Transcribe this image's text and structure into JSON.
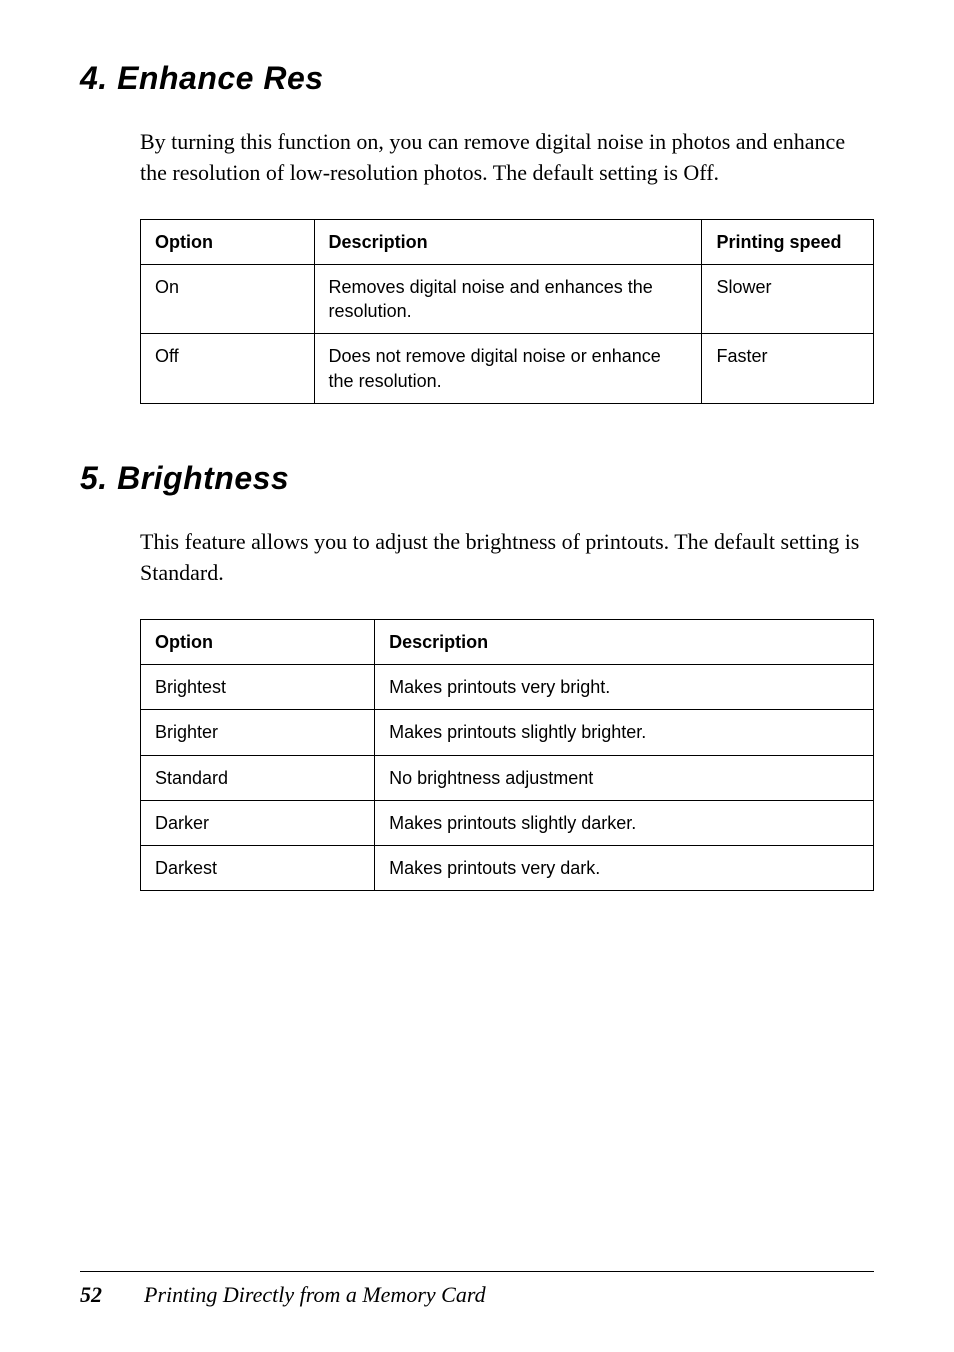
{
  "section1": {
    "heading": "4. Enhance Res",
    "body": "By turning this function on, you can remove digital noise in photos and enhance the resolution of low-resolution photos. The default setting is Off.",
    "table": {
      "headers": {
        "c1": "Option",
        "c2": "Description",
        "c3": "Printing speed"
      },
      "rows": [
        {
          "c1": "On",
          "c2": "Removes digital noise and enhances the resolution.",
          "c3": "Slower"
        },
        {
          "c1": "Off",
          "c2": "Does not remove digital noise or enhance the resolution.",
          "c3": "Faster"
        }
      ]
    }
  },
  "section2": {
    "heading": "5. Brightness",
    "body": "This feature allows you to adjust the brightness of printouts. The default setting is Standard.",
    "table": {
      "headers": {
        "c1": "Option",
        "c2": "Description"
      },
      "rows": [
        {
          "c1": "Brightest",
          "c2": "Makes printouts very bright."
        },
        {
          "c1": "Brighter",
          "c2": "Makes printouts slightly brighter."
        },
        {
          "c1": "Standard",
          "c2": "No brightness adjustment"
        },
        {
          "c1": "Darker",
          "c2": "Makes printouts slightly darker."
        },
        {
          "c1": "Darkest",
          "c2": "Makes printouts very dark."
        }
      ]
    }
  },
  "footer": {
    "page_number": "52",
    "title": "Printing Directly from a Memory Card"
  }
}
